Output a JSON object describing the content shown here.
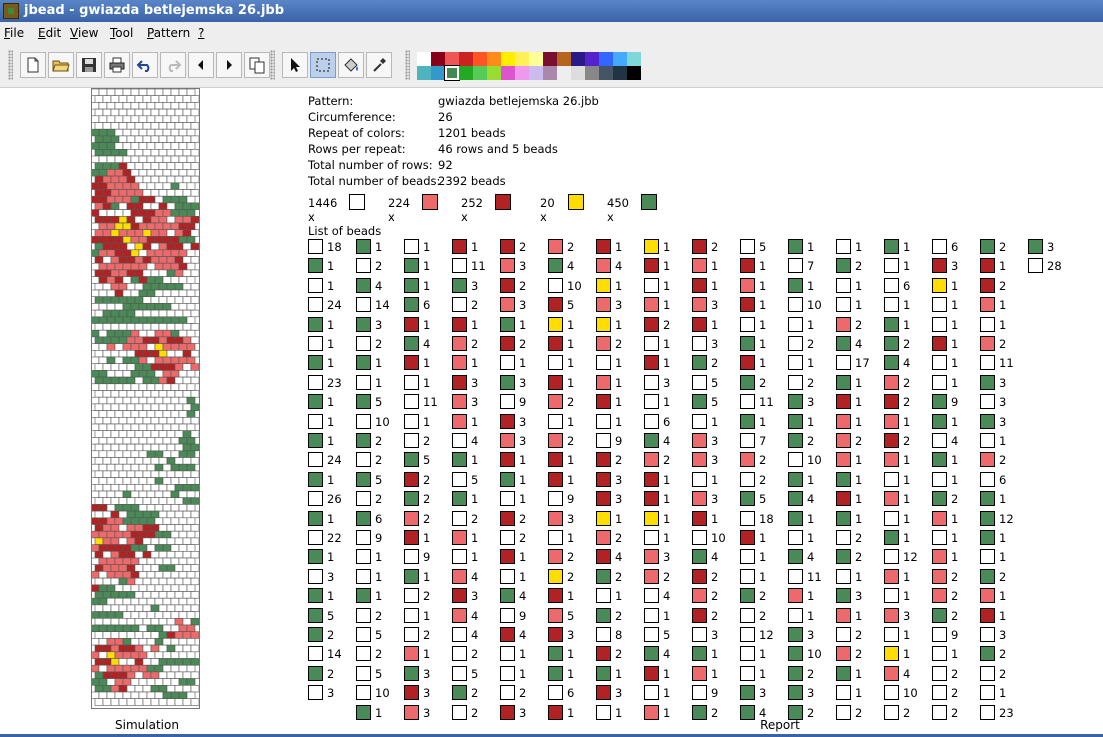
{
  "window": {
    "title": "jbead - gwiazda betlejemska 26.jbb"
  },
  "menu": [
    {
      "key": "F",
      "rest": "ile"
    },
    {
      "key": "E",
      "rest": "dit"
    },
    {
      "key": "V",
      "rest": "iew"
    },
    {
      "key": "T",
      "rest": "ool"
    },
    {
      "key": "P",
      "rest": "attern"
    },
    {
      "key": "?",
      "rest": ""
    }
  ],
  "toolbar": {
    "buttons": [
      {
        "name": "new-file-button",
        "icon": "new-file-icon"
      },
      {
        "name": "open-file-button",
        "icon": "open-folder-icon"
      },
      {
        "name": "save-button",
        "icon": "floppy-icon"
      },
      {
        "name": "print-button",
        "icon": "printer-icon"
      },
      {
        "name": "undo-button",
        "icon": "undo-icon"
      },
      {
        "name": "redo-button",
        "icon": "redo-icon"
      },
      {
        "name": "shift-left-button",
        "icon": "arrow-left-icon"
      },
      {
        "name": "shift-right-button",
        "icon": "arrow-right-icon"
      },
      {
        "name": "copy-button",
        "icon": "copy-icon"
      },
      {
        "name": "pointer-tool-button",
        "icon": "pointer-icon"
      },
      {
        "name": "select-tool-button",
        "icon": "select-rect-icon",
        "selected": true
      },
      {
        "name": "fill-tool-button",
        "icon": "paint-bucket-icon"
      },
      {
        "name": "pipette-tool-button",
        "icon": "pipette-icon"
      }
    ]
  },
  "palette": {
    "row1": [
      "#ffffff",
      "#880015",
      "#ee5555",
      "#cc2222",
      "#ff5522",
      "#ff8c1a",
      "#ffee00",
      "#fff155",
      "#ffff99",
      "#7a1030",
      "#b5651d",
      "#2a1a88",
      "#5522cc",
      "#3366ff",
      "#44aaff",
      "#7fd8d8"
    ],
    "row2": [
      "#4fb3bf",
      "#3399cc",
      "#448855",
      "#22aa22",
      "#55cc55",
      "#99dd33",
      "#dd55cc",
      "#ee99ee",
      "#ccbbee",
      "#aa88aa",
      "#eeeeee",
      "#dddddd",
      "#888888",
      "#445566",
      "#223344",
      "#000000"
    ],
    "selected_index_row2": 2
  },
  "info": {
    "rows": [
      {
        "label": "Pattern:",
        "value": "gwiazda betlejemska 26.jbb"
      },
      {
        "label": "Circumference:",
        "value": "26"
      },
      {
        "label": "Repeat of colors:",
        "value": "1201 beads"
      },
      {
        "label": "Rows per repeat:",
        "value": "46 rows and 5 beads"
      },
      {
        "label": "Total number of rows:",
        "value": "92"
      },
      {
        "label": "Total number of beads:",
        "value": "2392 beads"
      }
    ]
  },
  "colors": {
    "W": "#ffffff",
    "G": "#4a8a56",
    "R": "#b22222",
    "P": "#ee6a6a",
    "Y": "#ffdd00"
  },
  "summary": [
    {
      "count": "1446 x",
      "color": "W"
    },
    {
      "count": "224 x",
      "color": "P"
    },
    {
      "count": "252 x",
      "color": "R"
    },
    {
      "count": "20 x",
      "color": "Y"
    },
    {
      "count": "450 x",
      "color": "G"
    }
  ],
  "list_title": "List of beads",
  "bead_list": {
    "columns": [
      "W18 G1 W1 W24 G1 W1 G1 W23 G1 W1 G1 W24 G1 W26 G1 W22 G1 W3 G1 G5 G2 W14 G2 W3",
      "G1 W2 G4 W14 G3 W2 G1 W1 G5 W10 G2 W2 G5 W2 G6 W9 W1 W1 G1 W2 W5 W2 W5 W10 G1",
      "W1 G1 G1 G6 R1 G4 R1 W1 W11 W1 W2 G5 R2 G2 P2 R1 W9 G1 W2 W1 W2 P1 G3 R3 P3",
      "R1 W11 G3 W2 R1 P2 P1 R3 P3 P1 W4 G1 W5 G1 W2 P1 W1 P4 R3 P4 W4 W2 W5 G2 W2",
      "R2 P3 R2 P3 G1 R2 W1 G3 W9 R3 P3 R1 G1 W1 R2 W2 R1 W1 G4 W9 R4 W1 W1 W2 R3",
      "P2 G4 W10 R5 Y1 R1 W1 R1 P2 W1 P2 R1 R1 W9 P3 W1 P2 Y2 R1 P5 R3 G1 G1 W6 R1",
      "R1 P4 Y1 P3 Y1 P2 W1 P1 R1 W1 W9 R2 R3 R3 Y1 P2 R4 G2 W1 G2 W8 R2 G1 R3 W1",
      "Y1 R1 W1 P1 R2 W1 R1 W3 W1 W6 G4 P2 R1 R1 Y1 W1 P3 P2 W4 W1 W5 G4 R1 W1 P1",
      "R2 P1 R1 P3 R1 W3 G2 W5 G5 W1 P3 P3 W1 P3 R1 W10 G4 R2 P2 R2 W3 G1 P1 W9 G2",
      "W5 R1 P1 R1 W1 G1 R1 G2 W11 G1 W7 P2 W2 G5 W18 R1 W1 W1 G2 W2 W12 W1 W1 G3 G4",
      "G1 W7 G1 W10 W1 W2 W1 W2 G3 G1 G2 W10 G1 G4 G1 W1 G4 W11 P1 W1 G3 G10 G2 G3 G2",
      "W1 G2 W1 W1 P2 G4 W17 G1 R1 P1 P2 P1 G1 R1 G1 W2 G2 W1 G3 P1 W2 P2 G1 W1 W2",
      "G1 W1 W6 W1 G1 G2 G4 P2 R2 P1 R2 P1 W1 P1 W1 G1 W12 P1 W1 P3 W1 Y1 P4 W10 W2",
      "W6 R3 Y1 W1 W1 R1 W1 W1 G9 G1 W4 G1 W1 G2 P1 W1 P1 P2 P2 G2 W9 W1 W2 W2 W2",
      "G2 R1 R2 P1 W1 P2 W11 G3 W3 G3 W1 P2 W6 G1 G12 G1 W1 G2 P1 R1 W3 G2 W2 W1 W23",
      "G3 W28"
    ]
  }
}
